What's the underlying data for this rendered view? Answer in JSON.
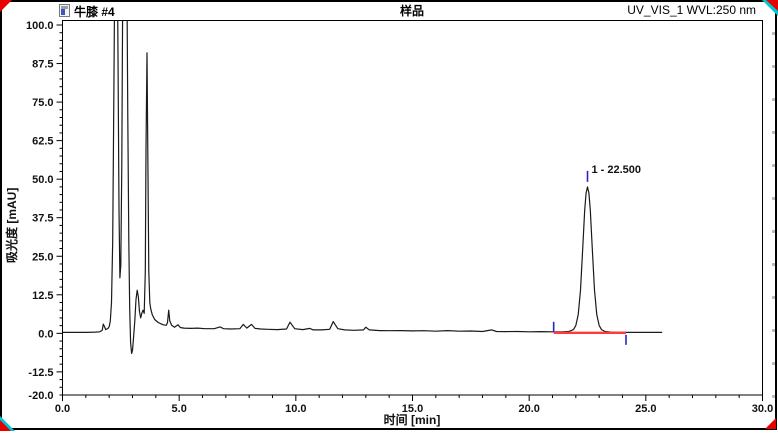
{
  "header": {
    "injection_name": "牛膝 #4",
    "sample_type": "样品",
    "channel": "UV_VIS_1 WVL:250 nm"
  },
  "axes": {
    "y_title": "吸光度 [mAU]",
    "x_title": "时间 [min]",
    "x_tick_labels": [
      "0.0",
      "5.0",
      "10.0",
      "15.0",
      "20.0",
      "25.0",
      "30.0"
    ],
    "y_tick_labels": [
      "100.0",
      "87.5",
      "75.0",
      "62.5",
      "50.0",
      "37.5",
      "25.0",
      "12.5",
      "0.0",
      "-12.5",
      "-20.0"
    ]
  },
  "colors": {
    "trace": "#1a1a1a",
    "baseline": "#ff3b3b",
    "marker": "#2727c4",
    "corner_red": "#e60000",
    "corner_cyan": "#00c8d2",
    "frame": "#000000"
  },
  "chart_data": {
    "type": "line",
    "title": "样品",
    "xlabel": "时间 [min]",
    "ylabel": "吸光度 [mAU]",
    "xlim": [
      0,
      30
    ],
    "ylim": [
      -20,
      100
    ],
    "x_major_step": 5,
    "x_minor_step": 1,
    "y_major_step": 12.5,
    "y_minor_step": 2.5,
    "grid": false,
    "legend": "none",
    "peaks": [
      {
        "number": 1,
        "label": "1 - 22.500",
        "retention_min": 22.5,
        "height_mau": 47.5,
        "baseline_start_min": 21.05,
        "baseline_end_min": 24.15,
        "baseline_mau": 0
      }
    ],
    "series": [
      {
        "name": "UV_VIS_1 WVL:250 nm",
        "points": [
          [
            0,
            0.3
          ],
          [
            0.5,
            0.3
          ],
          [
            1.0,
            0.3
          ],
          [
            1.4,
            0.4
          ],
          [
            1.6,
            0.5
          ],
          [
            1.7,
            1.0
          ],
          [
            1.75,
            3.0
          ],
          [
            1.8,
            2.2
          ],
          [
            1.85,
            1.2
          ],
          [
            1.95,
            1.6
          ],
          [
            2.0,
            2.2
          ],
          [
            2.05,
            4
          ],
          [
            2.1,
            10
          ],
          [
            2.15,
            30
          ],
          [
            2.2,
            75
          ],
          [
            2.24,
            120
          ],
          [
            2.28,
            140
          ],
          [
            2.33,
            140
          ],
          [
            2.38,
            90
          ],
          [
            2.42,
            40
          ],
          [
            2.46,
            18
          ],
          [
            2.5,
            22
          ],
          [
            2.54,
            55
          ],
          [
            2.58,
            110
          ],
          [
            2.62,
            140
          ],
          [
            2.72,
            140
          ],
          [
            2.76,
            115
          ],
          [
            2.8,
            70
          ],
          [
            2.84,
            30
          ],
          [
            2.88,
            8
          ],
          [
            2.92,
            -3
          ],
          [
            2.96,
            -6.5
          ],
          [
            3.0,
            -5.5
          ],
          [
            3.04,
            -2
          ],
          [
            3.1,
            4
          ],
          [
            3.15,
            11
          ],
          [
            3.2,
            14
          ],
          [
            3.25,
            12
          ],
          [
            3.3,
            7
          ],
          [
            3.35,
            5
          ],
          [
            3.4,
            6.5
          ],
          [
            3.45,
            7.5
          ],
          [
            3.5,
            6.5
          ],
          [
            3.55,
            20
          ],
          [
            3.58,
            60
          ],
          [
            3.62,
            91
          ],
          [
            3.66,
            55
          ],
          [
            3.7,
            20
          ],
          [
            3.74,
            10
          ],
          [
            3.78,
            8
          ],
          [
            3.85,
            6
          ],
          [
            3.95,
            4.5
          ],
          [
            4.1,
            3.5
          ],
          [
            4.3,
            2.8
          ],
          [
            4.45,
            2.6
          ],
          [
            4.5,
            3.5
          ],
          [
            4.55,
            7.5
          ],
          [
            4.6,
            4
          ],
          [
            4.68,
            2.6
          ],
          [
            4.8,
            2.0
          ],
          [
            4.95,
            2.8
          ],
          [
            5.05,
            1.9
          ],
          [
            5.2,
            1.7
          ],
          [
            5.5,
            1.6
          ],
          [
            5.8,
            1.7
          ],
          [
            6.1,
            1.5
          ],
          [
            6.5,
            1.5
          ],
          [
            6.75,
            2.1
          ],
          [
            6.9,
            1.5
          ],
          [
            7.2,
            1.4
          ],
          [
            7.6,
            1.5
          ],
          [
            7.75,
            2.9
          ],
          [
            7.9,
            1.7
          ],
          [
            8.1,
            2.9
          ],
          [
            8.25,
            1.6
          ],
          [
            8.5,
            1.4
          ],
          [
            8.8,
            1.3
          ],
          [
            9.2,
            1.2
          ],
          [
            9.6,
            1.4
          ],
          [
            9.75,
            3.6
          ],
          [
            9.95,
            1.5
          ],
          [
            10.3,
            1.2
          ],
          [
            10.6,
            1.6
          ],
          [
            10.75,
            1.1
          ],
          [
            11.1,
            1.1
          ],
          [
            11.45,
            1.3
          ],
          [
            11.6,
            3.8
          ],
          [
            11.8,
            1.5
          ],
          [
            12.1,
            1.1
          ],
          [
            12.5,
            1.0
          ],
          [
            12.9,
            1.1
          ],
          [
            13.0,
            2.0
          ],
          [
            13.15,
            1.1
          ],
          [
            13.6,
            0.9
          ],
          [
            14.0,
            0.85
          ],
          [
            14.5,
            0.9
          ],
          [
            15.0,
            0.8
          ],
          [
            15.5,
            0.85
          ],
          [
            16.0,
            0.7
          ],
          [
            16.5,
            0.9
          ],
          [
            17.0,
            0.7
          ],
          [
            17.5,
            0.75
          ],
          [
            18.0,
            0.6
          ],
          [
            18.4,
            1.1
          ],
          [
            18.6,
            0.6
          ],
          [
            19.0,
            0.55
          ],
          [
            19.5,
            0.6
          ],
          [
            20.0,
            0.5
          ],
          [
            20.5,
            0.55
          ],
          [
            21.0,
            0.5
          ],
          [
            21.4,
            0.5
          ],
          [
            21.7,
            0.6
          ],
          [
            21.9,
            1.2
          ],
          [
            22.0,
            2.5
          ],
          [
            22.1,
            6
          ],
          [
            22.2,
            14
          ],
          [
            22.3,
            28
          ],
          [
            22.38,
            40
          ],
          [
            22.44,
            45.5
          ],
          [
            22.5,
            47.5
          ],
          [
            22.56,
            45.5
          ],
          [
            22.62,
            40
          ],
          [
            22.7,
            28
          ],
          [
            22.8,
            14
          ],
          [
            22.9,
            6
          ],
          [
            23.0,
            2.5
          ],
          [
            23.1,
            1.2
          ],
          [
            23.25,
            0.6
          ],
          [
            23.5,
            0.4
          ],
          [
            23.8,
            0.3
          ],
          [
            24.1,
            0.3
          ],
          [
            24.5,
            0.3
          ],
          [
            25.0,
            0.3
          ],
          [
            25.4,
            0.3
          ],
          [
            25.7,
            0.3
          ]
        ]
      }
    ]
  }
}
